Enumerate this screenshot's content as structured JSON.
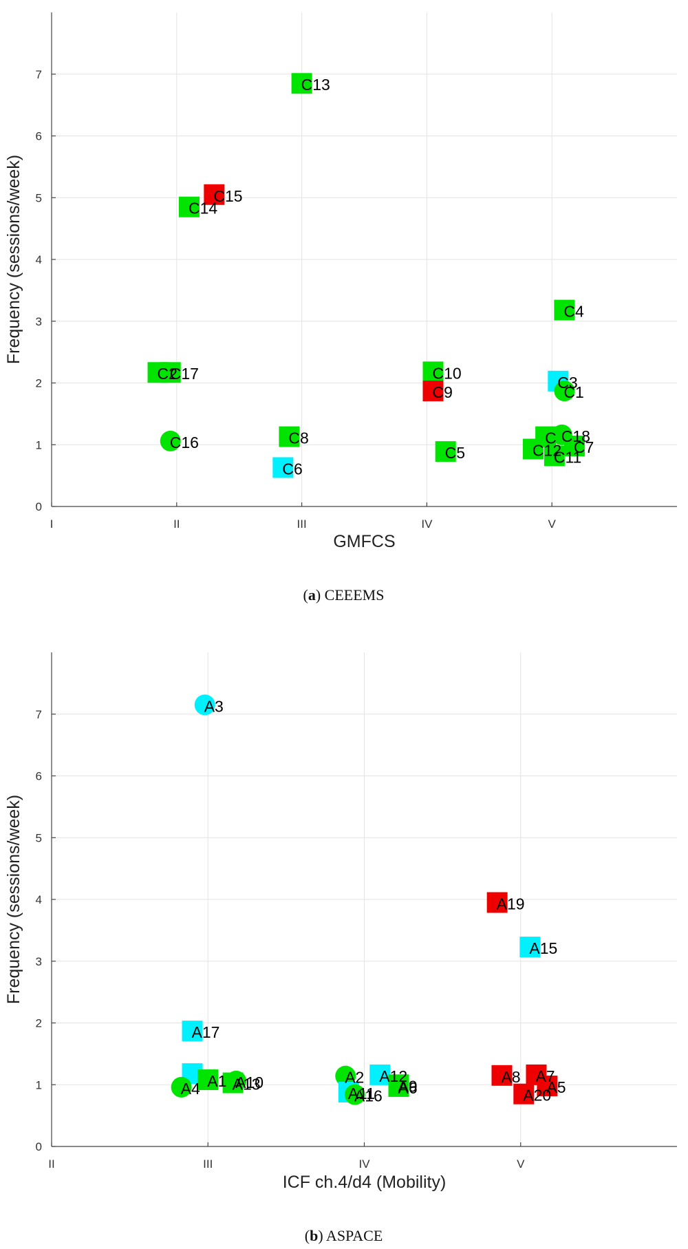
{
  "colors": {
    "green": "#00e400",
    "cyan": "#00f0ff",
    "red": "#ee0000"
  },
  "chart_data": [
    {
      "type": "scatter",
      "caption_letter": "a",
      "caption_text": " CEEEMS",
      "xlabel": "GMFCS",
      "ylabel": "Frequency (sessions/week)",
      "xlim": [
        1,
        6
      ],
      "ylim": [
        0,
        8
      ],
      "x_tick_labels": [
        "I",
        "II",
        "III",
        "IV",
        "V"
      ],
      "y_ticks": [
        0,
        1,
        2,
        3,
        4,
        5,
        6,
        7
      ],
      "grid": true,
      "points": [
        {
          "label": "C13",
          "x": 3.0,
          "y": 6.85,
          "shape": "square",
          "color": "green"
        },
        {
          "label": "C15",
          "x": 2.3,
          "y": 5.05,
          "shape": "square",
          "color": "red"
        },
        {
          "label": "C14",
          "x": 2.1,
          "y": 4.85,
          "shape": "square",
          "color": "green"
        },
        {
          "label": "C4",
          "x": 5.1,
          "y": 3.18,
          "shape": "square",
          "color": "green"
        },
        {
          "label": "C2",
          "x": 1.85,
          "y": 2.17,
          "shape": "square",
          "color": "green"
        },
        {
          "label": "C17",
          "x": 1.95,
          "y": 2.17,
          "shape": "square",
          "color": "green"
        },
        {
          "label": "C10",
          "x": 4.05,
          "y": 2.18,
          "shape": "square",
          "color": "green"
        },
        {
          "label": "C9",
          "x": 4.05,
          "y": 1.87,
          "shape": "square",
          "color": "red"
        },
        {
          "label": "C3",
          "x": 5.05,
          "y": 2.03,
          "shape": "square",
          "color": "cyan"
        },
        {
          "label": "C1",
          "x": 5.1,
          "y": 1.87,
          "shape": "circle",
          "color": "green"
        },
        {
          "label": "C16",
          "x": 1.95,
          "y": 1.06,
          "shape": "circle",
          "color": "green"
        },
        {
          "label": "C8",
          "x": 2.9,
          "y": 1.13,
          "shape": "square",
          "color": "green"
        },
        {
          "label": "C6",
          "x": 2.85,
          "y": 0.63,
          "shape": "square",
          "color": "cyan"
        },
        {
          "label": "C5",
          "x": 4.15,
          "y": 0.89,
          "shape": "square",
          "color": "green"
        },
        {
          "label": "C",
          "x": 4.95,
          "y": 1.13,
          "shape": "square",
          "color": "green"
        },
        {
          "label": "C18",
          "x": 5.08,
          "y": 1.16,
          "shape": "circle",
          "color": "green"
        },
        {
          "label": "C12",
          "x": 4.85,
          "y": 0.93,
          "shape": "square",
          "color": "green"
        },
        {
          "label": "C7",
          "x": 5.18,
          "y": 0.98,
          "shape": "square",
          "color": "green"
        },
        {
          "label": "C11",
          "x": 5.02,
          "y": 0.82,
          "shape": "square",
          "color": "green"
        }
      ]
    },
    {
      "type": "scatter",
      "caption_letter": "b",
      "caption_text": " ASPACE",
      "xlabel": "ICF ch.4/d4 (Mobility)",
      "ylabel": "Frequency (sessions/week)",
      "xlim": [
        2,
        6
      ],
      "ylim": [
        0,
        8
      ],
      "x_tick_labels": [
        "II",
        "III",
        "IV",
        "V"
      ],
      "y_ticks": [
        0,
        1,
        2,
        3,
        4,
        5,
        6,
        7
      ],
      "grid": true,
      "points": [
        {
          "label": "A3",
          "x": 2.98,
          "y": 7.15,
          "shape": "circle",
          "color": "cyan"
        },
        {
          "label": "A19",
          "x": 4.85,
          "y": 3.95,
          "shape": "square",
          "color": "red"
        },
        {
          "label": "A15",
          "x": 5.06,
          "y": 3.23,
          "shape": "square",
          "color": "cyan"
        },
        {
          "label": "A17",
          "x": 2.9,
          "y": 1.87,
          "shape": "square",
          "color": "cyan"
        },
        {
          "label": "",
          "x": 2.9,
          "y": 1.18,
          "shape": "square",
          "color": "cyan"
        },
        {
          "label": "A1",
          "x": 3.0,
          "y": 1.08,
          "shape": "square",
          "color": "green"
        },
        {
          "label": "A10",
          "x": 3.18,
          "y": 1.06,
          "shape": "circle",
          "color": "green"
        },
        {
          "label": "A13",
          "x": 3.16,
          "y": 1.03,
          "shape": "square",
          "color": "green"
        },
        {
          "label": "A4",
          "x": 2.83,
          "y": 0.96,
          "shape": "circle",
          "color": "green"
        },
        {
          "label": "A2",
          "x": 3.88,
          "y": 1.14,
          "shape": "circle",
          "color": "green"
        },
        {
          "label": "A12",
          "x": 4.1,
          "y": 1.16,
          "shape": "square",
          "color": "cyan"
        },
        {
          "label": "A9",
          "x": 4.22,
          "y": 1.0,
          "shape": "square",
          "color": "green"
        },
        {
          "label": "A6",
          "x": 4.22,
          "y": 0.97,
          "shape": "square",
          "color": "green"
        },
        {
          "label": "A11",
          "x": 3.9,
          "y": 0.88,
          "shape": "square",
          "color": "cyan"
        },
        {
          "label": "A16",
          "x": 3.94,
          "y": 0.84,
          "shape": "circle",
          "color": "green"
        },
        {
          "label": "A8",
          "x": 4.88,
          "y": 1.15,
          "shape": "square",
          "color": "red"
        },
        {
          "label": "A7",
          "x": 5.1,
          "y": 1.16,
          "shape": "square",
          "color": "red"
        },
        {
          "label": "A5",
          "x": 5.17,
          "y": 0.98,
          "shape": "square",
          "color": "red"
        },
        {
          "label": "A20",
          "x": 5.02,
          "y": 0.85,
          "shape": "square",
          "color": "red"
        }
      ]
    }
  ]
}
